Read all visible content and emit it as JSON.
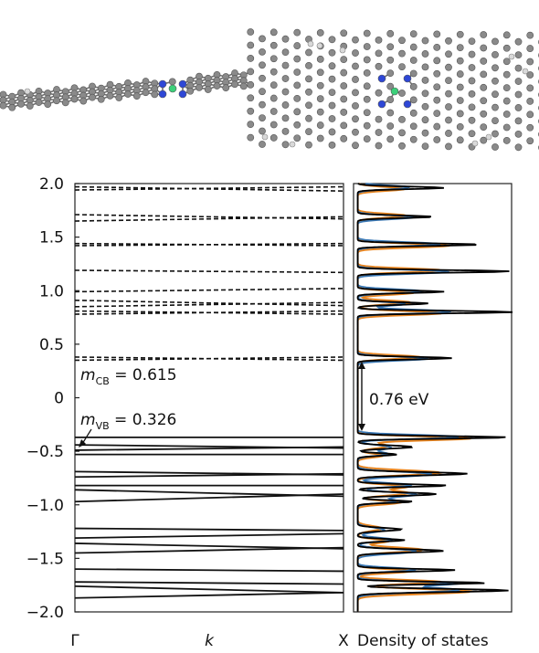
{
  "chart_data": [
    {
      "type": "line",
      "title": "",
      "xlabel": "k",
      "ylabel": "",
      "ylim": [
        -2.0,
        2.0
      ],
      "yticks": [
        2.0,
        1.5,
        1.0,
        0.5,
        0,
        -0.5,
        -1.0,
        -1.5,
        -2.0
      ],
      "ytick_labels": [
        "2.0",
        "1.5",
        "1.0",
        "0.5",
        "0",
        "−0.5",
        "−1.0",
        "−1.5",
        "−2.0"
      ],
      "xtick_labels": [
        "Γ",
        "X"
      ],
      "annotations": [
        {
          "var": "m",
          "sub": "CB",
          "text": " = 0.615"
        },
        {
          "var": "m",
          "sub": "VB",
          "text": " = 0.326"
        }
      ],
      "series": [
        {
          "style": "dashed",
          "bands": [
            [
              1.97,
              1.93
            ],
            [
              1.94,
              1.97
            ],
            [
              1.71,
              1.67
            ],
            [
              1.65,
              1.69
            ],
            [
              1.44,
              1.42
            ],
            [
              1.42,
              1.44
            ],
            [
              1.19,
              1.17
            ],
            [
              0.99,
              1.02
            ],
            [
              0.91,
              0.86
            ],
            [
              0.85,
              0.89
            ],
            [
              0.81,
              0.78
            ],
            [
              0.78,
              0.81
            ],
            [
              0.38,
              0.35
            ],
            [
              0.35,
              0.38
            ]
          ]
        },
        {
          "style": "solid",
          "bands": [
            [
              -0.37,
              -0.37
            ],
            [
              -0.44,
              -0.47
            ],
            [
              -0.49,
              -0.46
            ],
            [
              -0.53,
              -0.53
            ],
            [
              -0.69,
              -0.72
            ],
            [
              -0.74,
              -0.71
            ],
            [
              -0.82,
              -0.82
            ],
            [
              -0.86,
              -0.92
            ],
            [
              -0.97,
              -0.9
            ],
            [
              -1.22,
              -1.24
            ],
            [
              -1.31,
              -1.27
            ],
            [
              -1.36,
              -1.41
            ],
            [
              -1.45,
              -1.4
            ],
            [
              -1.6,
              -1.62
            ],
            [
              -1.72,
              -1.74
            ],
            [
              -1.76,
              -1.82
            ],
            [
              -1.87,
              -1.82
            ]
          ]
        }
      ]
    },
    {
      "type": "line",
      "xlabel": "Density of states",
      "ylim": [
        -2.0,
        2.0
      ],
      "gap_annotation": {
        "text": "0.76 eV",
        "from": -0.37,
        "to": 0.38
      },
      "peaks": [
        {
          "y": 1.96,
          "h": 0.55,
          "w": 0.012
        },
        {
          "y": 1.69,
          "h": 0.48,
          "w": 0.012
        },
        {
          "y": 1.43,
          "h": 0.78,
          "w": 0.012
        },
        {
          "y": 1.18,
          "h": 0.97,
          "w": 0.012
        },
        {
          "y": 0.99,
          "h": 0.55,
          "w": 0.012
        },
        {
          "y": 0.88,
          "h": 0.45,
          "w": 0.012
        },
        {
          "y": 0.8,
          "h": 0.99,
          "w": 0.012
        },
        {
          "y": 0.37,
          "h": 0.6,
          "w": 0.012
        },
        {
          "y": -0.37,
          "h": 0.96,
          "w": 0.012
        },
        {
          "y": -0.46,
          "h": 0.35,
          "w": 0.015
        },
        {
          "y": -0.53,
          "h": 0.25,
          "w": 0.012
        },
        {
          "y": -0.71,
          "h": 0.7,
          "w": 0.015
        },
        {
          "y": -0.82,
          "h": 0.57,
          "w": 0.012
        },
        {
          "y": -0.9,
          "h": 0.5,
          "w": 0.015
        },
        {
          "y": -0.97,
          "h": 0.35,
          "w": 0.012
        },
        {
          "y": -1.23,
          "h": 0.28,
          "w": 0.015
        },
        {
          "y": -1.33,
          "h": 0.3,
          "w": 0.012
        },
        {
          "y": -1.43,
          "h": 0.55,
          "w": 0.015
        },
        {
          "y": -1.61,
          "h": 0.62,
          "w": 0.012
        },
        {
          "y": -1.73,
          "h": 0.82,
          "w": 0.012
        },
        {
          "y": -1.8,
          "h": 0.96,
          "w": 0.015
        }
      ],
      "colors": {
        "total": "#000000",
        "orange": "#e8841e",
        "blue": "#3a78b5",
        "dashed": "#222222"
      }
    }
  ]
}
